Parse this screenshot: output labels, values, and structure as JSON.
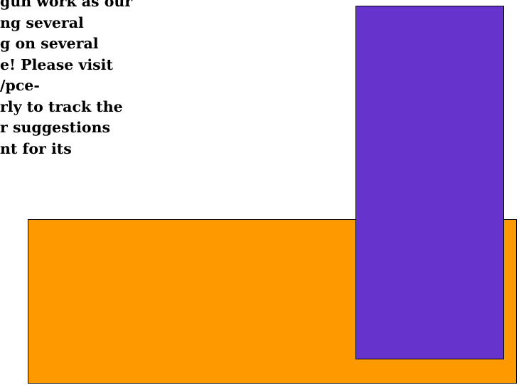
{
  "text_lines": [
    "gun work as our",
    "ng several",
    "g on several",
    "e! Please visit",
    "/pce-",
    "rly to track the",
    "r suggestions",
    "nt for its"
  ],
  "colors": {
    "orange_box": "#FF9900",
    "purple_box": "#6633CC",
    "border": "#000000"
  }
}
